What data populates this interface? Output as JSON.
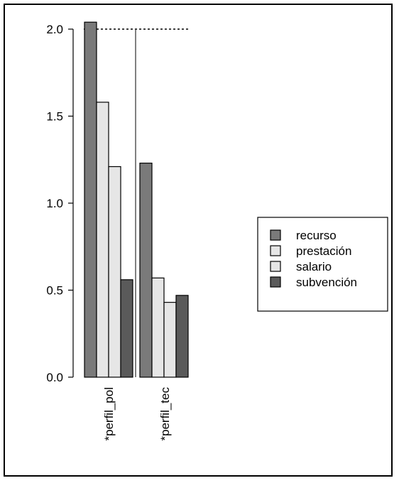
{
  "chart_data": {
    "type": "bar",
    "categories": [
      "*perfil_pol",
      "*perfil_tec"
    ],
    "series": [
      {
        "name": "recurso",
        "values": [
          2.04,
          1.23
        ],
        "color": "#7a7a7a"
      },
      {
        "name": "prestación",
        "values": [
          1.58,
          0.57
        ],
        "color": "#e6e6e6"
      },
      {
        "name": "salario",
        "values": [
          1.21,
          0.43
        ],
        "color": "#e6e6e6"
      },
      {
        "name": "subvención",
        "values": [
          0.56,
          0.47
        ],
        "color": "#5a5a5a"
      }
    ],
    "ylim": [
      0,
      2.1
    ],
    "yticks": [
      "0.0",
      "0.5",
      "1.0",
      "1.5",
      "2.0"
    ],
    "reference_line": {
      "y": 2.0,
      "style": "dotted"
    },
    "group_separator": true,
    "legend_position": "right",
    "grid": false
  }
}
